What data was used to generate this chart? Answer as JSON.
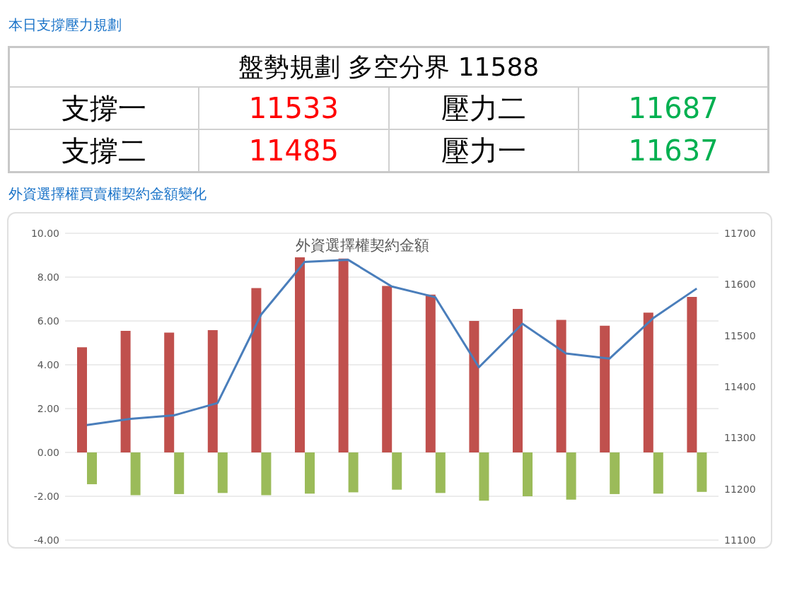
{
  "chart_data": [
    {
      "type": "other",
      "title": "本日支撐壓力規劃",
      "subtitle": "盤勢規劃 多空分界 11588",
      "annotations": [
        "支撐一",
        "11533",
        "壓力二",
        "11687",
        "支撐二",
        "11485",
        "壓力一",
        "11637"
      ]
    },
    {
      "type": "bar",
      "title": "外資選擇權買賣權契約金額變化",
      "subtitle": "外資選擇權契約金額",
      "categories": [
        null,
        null,
        null,
        null,
        null,
        null,
        null,
        null,
        null,
        null,
        null,
        null,
        null,
        null,
        null
      ],
      "series": [
        {
          "color": "#c0504d",
          "values": [
            4.8,
            5.55,
            5.47,
            5.58,
            7.5,
            8.9,
            8.85,
            7.6,
            7.2,
            6.0,
            6.55,
            6.05,
            5.78,
            6.38,
            7.1
          ]
        },
        {
          "color": "#9bbb59",
          "values": [
            -1.45,
            -1.95,
            -1.9,
            -1.85,
            -1.95,
            -1.88,
            -1.82,
            -1.7,
            -1.85,
            -2.2,
            -2.0,
            -2.15,
            -1.9,
            -1.88,
            -1.8
          ]
        },
        {
          "type": "line",
          "axis": "y2",
          "color": "#4a7ebb",
          "values": [
            11325,
            11337,
            11344,
            11368,
            11541,
            11644,
            11648,
            11596,
            11575,
            11438,
            11523,
            11465,
            11455,
            11534,
            11592
          ]
        }
      ],
      "ylim": [
        -4,
        10
      ],
      "yticks": [
        {
          "value": -4,
          "label": "-4.00"
        },
        {
          "value": -2,
          "label": "-2.00"
        },
        {
          "value": 0,
          "label": "0.00"
        },
        {
          "value": 2,
          "label": "2.00"
        },
        {
          "value": 4,
          "label": "4.00"
        },
        {
          "value": 6,
          "label": "6.00"
        },
        {
          "value": 8,
          "label": "8.00"
        },
        {
          "value": 10,
          "label": "10.00"
        }
      ],
      "y2lim": [
        11100,
        11700
      ],
      "y2ticks": [
        11100,
        11200,
        11300,
        11400,
        11500,
        11600,
        11700
      ],
      "grid": "y",
      "legend": false,
      "marker": "none",
      "tick_labels": "y"
    }
  ]
}
